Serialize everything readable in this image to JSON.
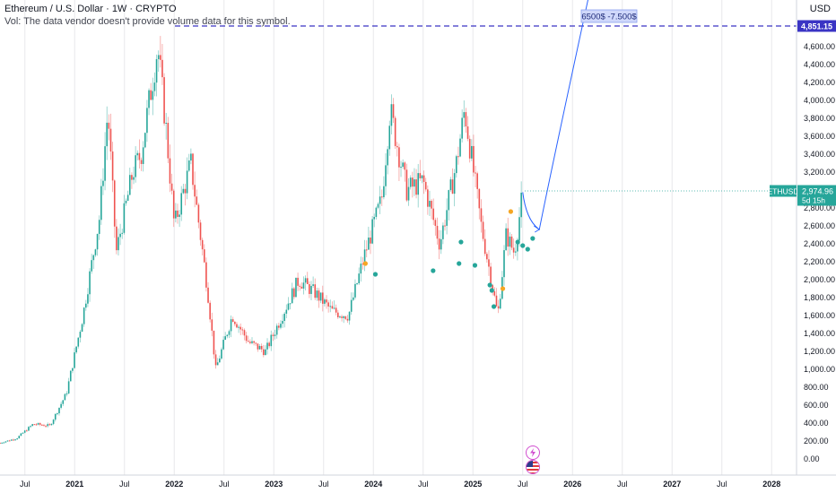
{
  "header": {
    "title": "Ethereum / U.S. Dollar · 1W · CRYPTO",
    "volume_note": "Vol: The data vendor doesn't provide volume data for this symbol."
  },
  "price_axis": {
    "currency": "USD",
    "ticks": [
      "0.00",
      "200.00",
      "400.00",
      "600.00",
      "800.00",
      "1,000.00",
      "1,200.00",
      "1,400.00",
      "1,600.00",
      "1,800.00",
      "2,000.00",
      "2,200.00",
      "2,400.00",
      "2,600.00",
      "2,800.00",
      "3,000.00",
      "3,200.00",
      "3,400.00",
      "3,600.00",
      "3,800.00",
      "4,000.00",
      "4,200.00",
      "4,400.00",
      "4,600.00"
    ]
  },
  "time_axis": {
    "ticks": [
      {
        "label": "Jul",
        "year": false
      },
      {
        "label": "2021",
        "year": true
      },
      {
        "label": "Jul",
        "year": false
      },
      {
        "label": "2022",
        "year": true
      },
      {
        "label": "Jul",
        "year": false
      },
      {
        "label": "2023",
        "year": true
      },
      {
        "label": "Jul",
        "year": false
      },
      {
        "label": "2024",
        "year": true
      },
      {
        "label": "Jul",
        "year": false
      },
      {
        "label": "2025",
        "year": true
      },
      {
        "label": "Jul",
        "year": false
      },
      {
        "label": "2026",
        "year": true
      },
      {
        "label": "Jul",
        "year": false
      },
      {
        "label": "2027",
        "year": true
      },
      {
        "label": "Jul",
        "year": false
      },
      {
        "label": "2028",
        "year": true
      }
    ]
  },
  "target_line": {
    "value": 4851.15,
    "label": "4,851.15",
    "annotation": "6500$ -7.500$",
    "color": "#3a34c4"
  },
  "last_price": {
    "symbol": "ETHUSD",
    "value": "2,974.96",
    "countdown": "5d 15h",
    "color": "#26a69a"
  },
  "colors": {
    "up": "#26a69a",
    "down": "#ef5350",
    "projection": "#2962ff",
    "event_dot": "#26a69a",
    "dividend_dot": "#f5a623",
    "grid": "#e8e8ec"
  },
  "chart_data": {
    "type": "candlestick",
    "title": "Ethereum / U.S. Dollar · 1W · CRYPTO",
    "xlabel": "",
    "ylabel": "",
    "x_start": "2020-04",
    "x_end": "2028-04",
    "ylim": [
      -100,
      5100
    ],
    "grid": true,
    "approx_weekly_closes": [
      {
        "date": "2020-04",
        "close": 180
      },
      {
        "date": "2020-06",
        "close": 230
      },
      {
        "date": "2020-08",
        "close": 390
      },
      {
        "date": "2020-10",
        "close": 370
      },
      {
        "date": "2020-12",
        "close": 730
      },
      {
        "date": "2021-02",
        "close": 1600
      },
      {
        "date": "2021-04",
        "close": 2700
      },
      {
        "date": "2021-05",
        "close": 3900
      },
      {
        "date": "2021-06",
        "close": 2300
      },
      {
        "date": "2021-08",
        "close": 3200
      },
      {
        "date": "2021-09",
        "close": 3400
      },
      {
        "date": "2021-11",
        "close": 4600
      },
      {
        "date": "2021-12",
        "close": 3700
      },
      {
        "date": "2022-01",
        "close": 2600
      },
      {
        "date": "2022-03",
        "close": 3300
      },
      {
        "date": "2022-05",
        "close": 1900
      },
      {
        "date": "2022-06",
        "close": 1000
      },
      {
        "date": "2022-08",
        "close": 1600
      },
      {
        "date": "2022-10",
        "close": 1300
      },
      {
        "date": "2022-12",
        "close": 1200
      },
      {
        "date": "2023-02",
        "close": 1600
      },
      {
        "date": "2023-04",
        "close": 2000
      },
      {
        "date": "2023-06",
        "close": 1850
      },
      {
        "date": "2023-08",
        "close": 1650
      },
      {
        "date": "2023-10",
        "close": 1600
      },
      {
        "date": "2023-12",
        "close": 2300
      },
      {
        "date": "2024-02",
        "close": 2900
      },
      {
        "date": "2024-03",
        "close": 3900
      },
      {
        "date": "2024-05",
        "close": 3000
      },
      {
        "date": "2024-07",
        "close": 3100
      },
      {
        "date": "2024-09",
        "close": 2400
      },
      {
        "date": "2024-11",
        "close": 3300
      },
      {
        "date": "2024-12",
        "close": 3900
      },
      {
        "date": "2025-02",
        "close": 2600
      },
      {
        "date": "2025-04",
        "close": 1600
      },
      {
        "date": "2025-05",
        "close": 2500
      },
      {
        "date": "2025-06",
        "close": 2300
      },
      {
        "date": "2025-07",
        "close": 2975
      }
    ],
    "projection": [
      {
        "date": "2025-07",
        "value": 2975
      },
      {
        "date": "2025-09",
        "value": 2660
      },
      {
        "date": "2026-03",
        "value": 5300
      }
    ]
  }
}
